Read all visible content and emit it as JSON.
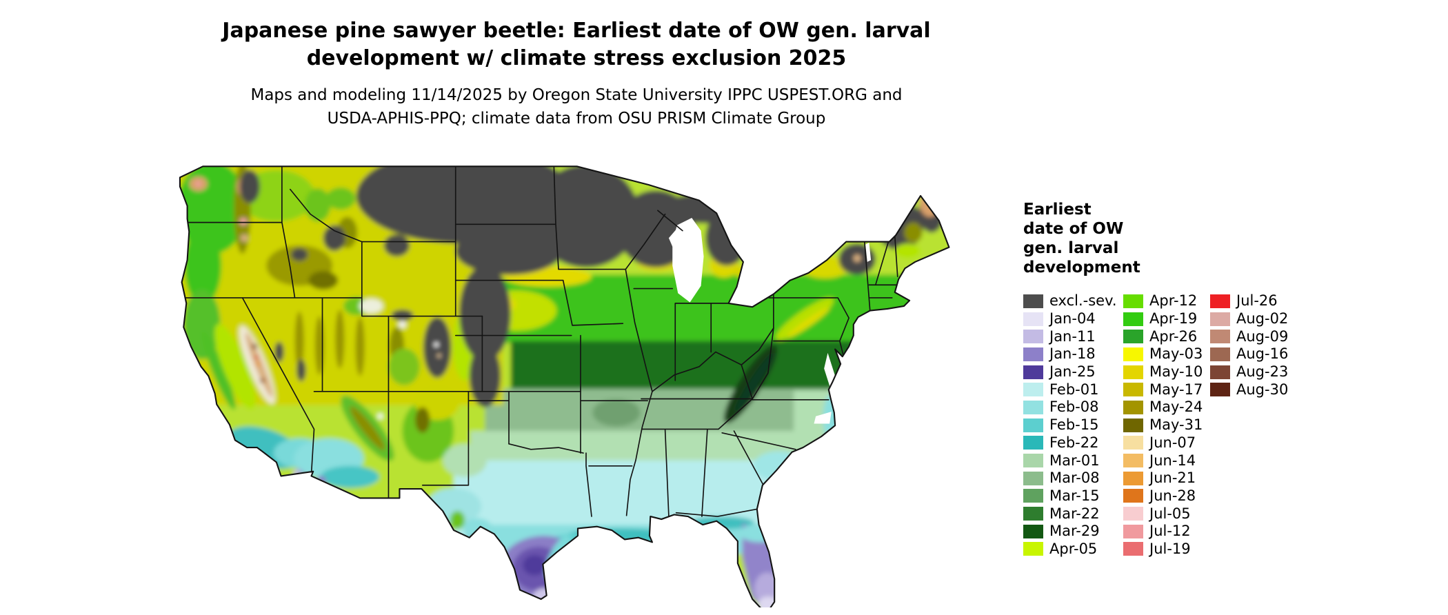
{
  "header": {
    "title": "Japanese pine sawyer beetle: Earliest date of OW gen. larval\ndevelopment w/ climate stress exclusion 2025",
    "subtitle": "Maps and modeling 11/14/2025 by Oregon State University IPPC USPEST.ORG and\nUSDA-APHIS-PPQ; climate data from OSU PRISM Climate Group"
  },
  "map": {
    "region": "Continental United States",
    "type": "choropleth raster with state boundaries"
  },
  "legend": {
    "title": "Earliest\ndate of OW\ngen. larval\ndevelopment",
    "columns": [
      [
        {
          "label": "excl.-sev.",
          "color": "#4d4d4d"
        },
        {
          "label": "Jan-04",
          "color": "#e6e3f5"
        },
        {
          "label": "Jan-11",
          "color": "#c3bbe4"
        },
        {
          "label": "Jan-18",
          "color": "#8d80c9"
        },
        {
          "label": "Jan-25",
          "color": "#4f3a9b"
        },
        {
          "label": "Feb-01",
          "color": "#bdeeee"
        },
        {
          "label": "Feb-08",
          "color": "#92e1e1"
        },
        {
          "label": "Feb-15",
          "color": "#5ccfcf"
        },
        {
          "label": "Feb-22",
          "color": "#2ab8b8"
        },
        {
          "label": "Mar-01",
          "color": "#a9d6a9"
        },
        {
          "label": "Mar-08",
          "color": "#8cbc8c"
        },
        {
          "label": "Mar-15",
          "color": "#5fa25f"
        },
        {
          "label": "Mar-22",
          "color": "#2e7d2e"
        },
        {
          "label": "Mar-29",
          "color": "#125812"
        },
        {
          "label": "Apr-05",
          "color": "#c8f500"
        }
      ],
      [
        {
          "label": "Apr-12",
          "color": "#66dd00"
        },
        {
          "label": "Apr-19",
          "color": "#33cc11"
        },
        {
          "label": "Apr-26",
          "color": "#2aa42a"
        },
        {
          "label": "May-03",
          "color": "#f7f700"
        },
        {
          "label": "May-10",
          "color": "#e3d500"
        },
        {
          "label": "May-17",
          "color": "#c9b800"
        },
        {
          "label": "May-24",
          "color": "#a39400"
        },
        {
          "label": "May-31",
          "color": "#6f6600"
        },
        {
          "label": "Jun-07",
          "color": "#f7dfa0"
        },
        {
          "label": "Jun-14",
          "color": "#f3bc63"
        },
        {
          "label": "Jun-21",
          "color": "#ec9a33"
        },
        {
          "label": "Jun-28",
          "color": "#df751b"
        },
        {
          "label": "Jul-05",
          "color": "#f8cdd0"
        },
        {
          "label": "Jul-12",
          "color": "#f09a9e"
        },
        {
          "label": "Jul-19",
          "color": "#ea6d70"
        }
      ],
      [
        {
          "label": "Jul-26",
          "color": "#ee2024"
        },
        {
          "label": "Aug-02",
          "color": "#dcaaa4"
        },
        {
          "label": "Aug-09",
          "color": "#c08974"
        },
        {
          "label": "Aug-16",
          "color": "#9d6852"
        },
        {
          "label": "Aug-23",
          "color": "#7c4534"
        },
        {
          "label": "Aug-30",
          "color": "#5e2414"
        }
      ]
    ]
  }
}
